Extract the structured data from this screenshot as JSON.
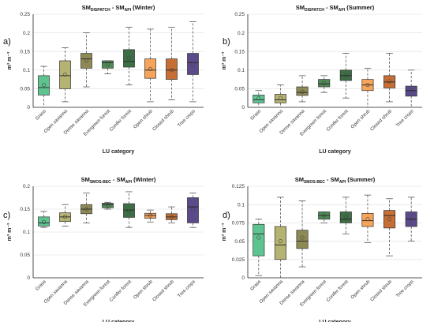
{
  "categories": [
    "Grass",
    "Open savanna",
    "Dense savanna",
    "Evergreen forest",
    "Conifer forest",
    "Open shrub",
    "Closed shrub",
    "Tree crops"
  ],
  "colors": [
    "#5dc48f",
    "#b5b372",
    "#8e8a55",
    "#4f8a56",
    "#3e6e45",
    "#f6a45a",
    "#c66e34",
    "#5a4a8a"
  ],
  "chart_data": [
    {
      "type": "box",
      "panel_label": "a)",
      "title_main": "SM",
      "title_sub1": "DISPATCH",
      "title_mid": " - SM",
      "title_sub2": "API",
      "title_season": " (Winter)",
      "xlabel": "LU category",
      "ylabel": "m³ m⁻³",
      "ylim": [
        0,
        0.25
      ],
      "yticks": [
        "0",
        "0.05",
        "0.1",
        "0.15",
        "0.2",
        "0.25"
      ],
      "series": [
        {
          "min": 0.0,
          "q1": 0.033,
          "median": 0.053,
          "q3": 0.085,
          "max": 0.11,
          "mean": 0.06
        },
        {
          "min": 0.015,
          "q1": 0.05,
          "median": 0.085,
          "q3": 0.125,
          "max": 0.16,
          "mean": 0.088
        },
        {
          "min": 0.055,
          "q1": 0.105,
          "median": 0.13,
          "q3": 0.145,
          "max": 0.2,
          "mean": 0.125
        },
        {
          "min": 0.09,
          "q1": 0.105,
          "median": 0.12,
          "q3": 0.125,
          "max": 0.125,
          "mean": 0.115
        },
        {
          "min": 0.06,
          "q1": 0.108,
          "median": 0.123,
          "q3": 0.155,
          "max": 0.215,
          "mean": 0.133
        },
        {
          "min": 0.015,
          "q1": 0.078,
          "median": 0.1,
          "q3": 0.13,
          "max": 0.21,
          "mean": 0.103
        },
        {
          "min": 0.02,
          "q1": 0.075,
          "median": 0.1,
          "q3": 0.13,
          "max": 0.215,
          "mean": 0.1
        },
        {
          "min": 0.015,
          "q1": 0.088,
          "median": 0.12,
          "q3": 0.145,
          "max": 0.23,
          "mean": 0.115
        }
      ]
    },
    {
      "type": "box",
      "panel_label": "b)",
      "title_main": "SM",
      "title_sub1": "DISPATCH",
      "title_mid": " - SM",
      "title_sub2": "API",
      "title_season": " (Summer)",
      "xlabel": "LU category",
      "ylabel": "m³ m⁻³",
      "ylim": [
        0,
        0.25
      ],
      "yticks": [
        "0",
        "0.05",
        "0.1",
        "0.15",
        "0.2",
        "0.25"
      ],
      "series": [
        {
          "min": 0.0,
          "q1": 0.012,
          "median": 0.02,
          "q3": 0.033,
          "max": 0.045,
          "mean": 0.024
        },
        {
          "min": 0.0,
          "q1": 0.012,
          "median": 0.02,
          "q3": 0.035,
          "max": 0.06,
          "mean": 0.025
        },
        {
          "min": 0.015,
          "q1": 0.032,
          "median": 0.04,
          "q3": 0.055,
          "max": 0.085,
          "mean": 0.042
        },
        {
          "min": 0.04,
          "q1": 0.055,
          "median": 0.063,
          "q3": 0.075,
          "max": 0.085,
          "mean": 0.065
        },
        {
          "min": 0.025,
          "q1": 0.072,
          "median": 0.085,
          "q3": 0.1,
          "max": 0.145,
          "mean": 0.085
        },
        {
          "min": 0.0,
          "q1": 0.045,
          "median": 0.06,
          "q3": 0.075,
          "max": 0.105,
          "mean": 0.06
        },
        {
          "min": 0.015,
          "q1": 0.052,
          "median": 0.068,
          "q3": 0.085,
          "max": 0.145,
          "mean": 0.07
        },
        {
          "min": 0.0,
          "q1": 0.03,
          "median": 0.045,
          "q3": 0.057,
          "max": 0.1,
          "mean": 0.045
        }
      ]
    },
    {
      "type": "box",
      "panel_label": "c)",
      "title_main": "SM",
      "title_sub1": "SMOS-BEC",
      "title_mid": " - SM",
      "title_sub2": "API",
      "title_season": " (Winter)",
      "xlabel": "LU category",
      "ylabel": "m³ m⁻³",
      "ylim": [
        0,
        0.2
      ],
      "yticks": [
        "0",
        "0.05",
        "0.1",
        "0.15",
        "0.2"
      ],
      "series": [
        {
          "min": 0.11,
          "q1": 0.113,
          "median": 0.12,
          "q3": 0.133,
          "max": 0.145,
          "mean": 0.122
        },
        {
          "min": 0.113,
          "q1": 0.123,
          "median": 0.133,
          "q3": 0.142,
          "max": 0.16,
          "mean": 0.133
        },
        {
          "min": 0.12,
          "q1": 0.14,
          "median": 0.15,
          "q3": 0.16,
          "max": 0.185,
          "mean": 0.15
        },
        {
          "min": 0.15,
          "q1": 0.153,
          "median": 0.16,
          "q3": 0.163,
          "max": 0.165,
          "mean": 0.158
        },
        {
          "min": 0.11,
          "q1": 0.132,
          "median": 0.148,
          "q3": 0.162,
          "max": 0.188,
          "mean": 0.145
        },
        {
          "min": 0.122,
          "q1": 0.13,
          "median": 0.136,
          "q3": 0.141,
          "max": 0.148,
          "mean": 0.136
        },
        {
          "min": 0.12,
          "q1": 0.127,
          "median": 0.133,
          "q3": 0.14,
          "max": 0.155,
          "mean": 0.133
        },
        {
          "min": 0.11,
          "q1": 0.12,
          "median": 0.155,
          "q3": 0.175,
          "max": 0.185,
          "mean": 0.15
        }
      ]
    },
    {
      "type": "box",
      "panel_label": "d)",
      "title_main": "SM",
      "title_sub1": "SMOS-BEC",
      "title_mid": " - SM",
      "title_sub2": "API",
      "title_season": " (Summer)",
      "xlabel": "LU category",
      "ylabel": "m³ m⁻³",
      "ylim": [
        0,
        0.125
      ],
      "yticks": [
        "0",
        "0.025",
        "0.05",
        "0.075",
        "0.1",
        "0.125"
      ],
      "series": [
        {
          "min": 0.003,
          "q1": 0.03,
          "median": 0.06,
          "q3": 0.073,
          "max": 0.08,
          "mean": 0.055
        },
        {
          "min": 0.0,
          "q1": 0.025,
          "median": 0.045,
          "q3": 0.07,
          "max": 0.11,
          "mean": 0.05
        },
        {
          "min": 0.015,
          "q1": 0.04,
          "median": 0.05,
          "q3": 0.065,
          "max": 0.105,
          "mean": 0.055
        },
        {
          "min": 0.075,
          "q1": 0.08,
          "median": 0.085,
          "q3": 0.09,
          "max": 0.09,
          "mean": 0.085
        },
        {
          "min": 0.06,
          "q1": 0.075,
          "median": 0.08,
          "q3": 0.09,
          "max": 0.11,
          "mean": 0.083
        },
        {
          "min": 0.048,
          "q1": 0.07,
          "median": 0.078,
          "q3": 0.088,
          "max": 0.113,
          "mean": 0.08
        },
        {
          "min": 0.03,
          "q1": 0.068,
          "median": 0.085,
          "q3": 0.092,
          "max": 0.108,
          "mean": 0.08
        },
        {
          "min": 0.05,
          "q1": 0.07,
          "median": 0.08,
          "q3": 0.09,
          "max": 0.11,
          "mean": 0.08
        }
      ]
    }
  ]
}
